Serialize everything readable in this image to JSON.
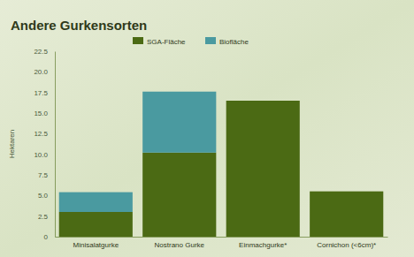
{
  "chart_data": {
    "type": "bar",
    "title": "Andere Gurkensorten",
    "y_label": "Hektaren",
    "categories": [
      "Minisalatgurke",
      "Nostrano Gurke",
      "Einmachgurke*",
      "Cornichon (<6cm)*"
    ],
    "series": [
      {
        "name": "SGA-Fläche",
        "color": "#4b6a14",
        "values": [
          3.0,
          10.2,
          16.5,
          5.5
        ]
      },
      {
        "name": "Biofläche",
        "color": "#4a9aa0",
        "values": [
          2.4,
          7.4,
          0,
          0
        ]
      }
    ],
    "stacked": true,
    "grid": false,
    "ylim": [
      0,
      22.5
    ],
    "yticks": [
      0,
      2.5,
      {
        "value": 5,
        "label": "5.0"
      },
      7.5,
      {
        "value": 10,
        "label": "10.0"
      },
      12.5,
      {
        "value": 15,
        "label": "15.0"
      },
      17.5,
      {
        "value": 20,
        "label": "20.0"
      },
      22.5
    ]
  }
}
